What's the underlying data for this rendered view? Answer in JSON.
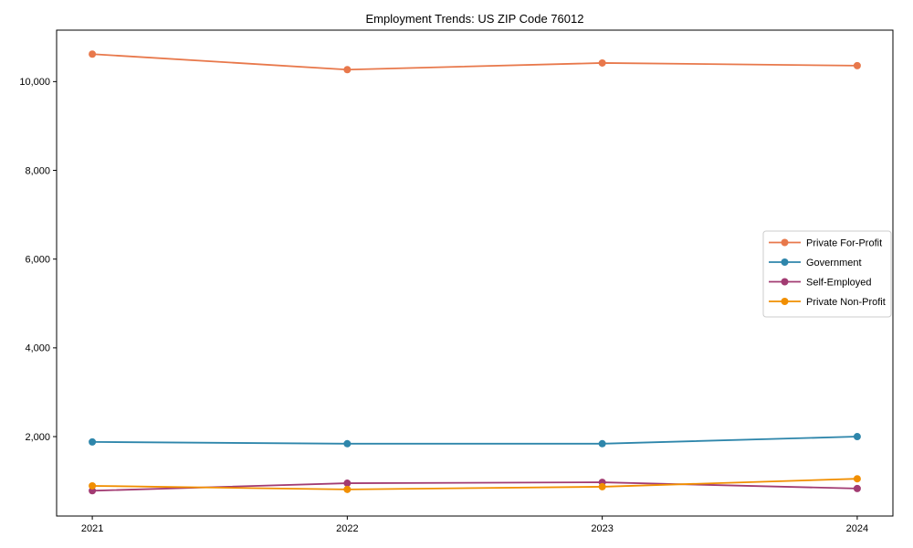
{
  "window": {
    "background": "#ffffff"
  },
  "chart_data": {
    "type": "line",
    "title": "Employment Trends: US ZIP Code 76012",
    "xlabel": "",
    "ylabel": "",
    "x": [
      2021,
      2022,
      2023,
      2024
    ],
    "xtick_labels": [
      "2021",
      "2022",
      "2023",
      "2024"
    ],
    "yticks": [
      2000,
      4000,
      6000,
      8000,
      10000
    ],
    "ytick_labels": [
      "2,000",
      "4,000",
      "6,000",
      "8,000",
      "10,000"
    ],
    "xlim": [
      2020.86,
      2024.14
    ],
    "ylim": [
      210,
      11160
    ],
    "grid": false,
    "marker": "o",
    "legend_position": "center right",
    "series": [
      {
        "name": "Private For-Profit",
        "color": "#E8784B",
        "values": [
          10620,
          10270,
          10420,
          10360
        ]
      },
      {
        "name": "Government",
        "color": "#2E86AB",
        "values": [
          1880,
          1840,
          1840,
          2000
        ]
      },
      {
        "name": "Self-Employed",
        "color": "#A23B72",
        "values": [
          780,
          950,
          970,
          830
        ]
      },
      {
        "name": "Private Non-Profit",
        "color": "#F18F01",
        "values": [
          890,
          810,
          870,
          1050
        ]
      }
    ],
    "axis_color": "#000000",
    "legend_border_color": "#cccccc",
    "legend_background": "#ffffff"
  }
}
